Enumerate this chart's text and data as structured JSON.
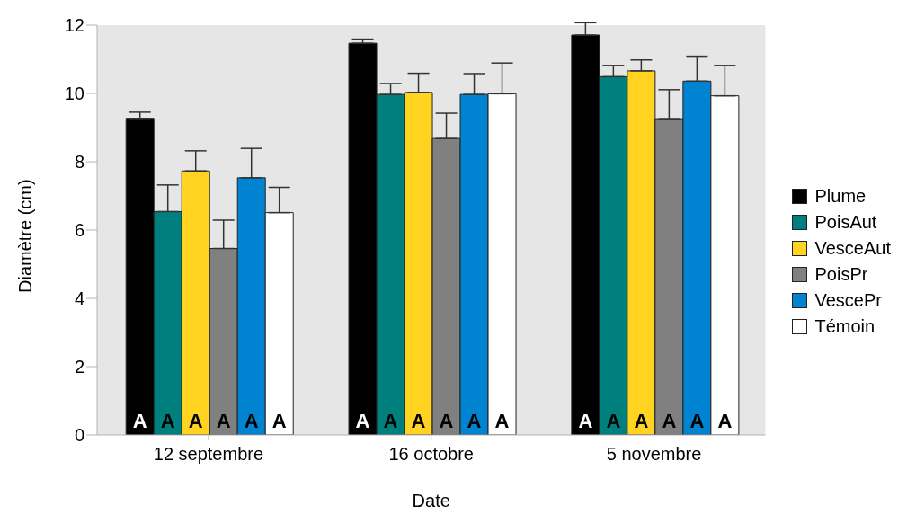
{
  "chart_data": {
    "type": "bar",
    "xlabel": "Date",
    "ylabel": "Diamètre (cm)",
    "categories": [
      "12 septembre",
      "16 octobre",
      "5 novembre"
    ],
    "series": [
      {
        "name": "Plume",
        "color": "#000000",
        "values": [
          9.27,
          11.47,
          11.71
        ],
        "errors": [
          [
            9.27,
            9.45
          ],
          [
            11.47,
            11.59
          ],
          [
            11.71,
            12.07
          ]
        ],
        "value_labels": [
          "A",
          "A",
          "A"
        ]
      },
      {
        "name": "PoisAut",
        "color": "#007f7f",
        "values": [
          6.54,
          9.97,
          10.49
        ],
        "errors": [
          [
            6.54,
            7.32
          ],
          [
            9.97,
            10.29
          ],
          [
            10.49,
            10.82
          ]
        ],
        "value_labels": [
          "A",
          "A",
          "A"
        ]
      },
      {
        "name": "VesceAut",
        "color": "#ffd320",
        "values": [
          7.73,
          10.03,
          10.66
        ],
        "errors": [
          [
            7.73,
            8.32
          ],
          [
            10.03,
            10.59
          ],
          [
            10.66,
            10.98
          ]
        ],
        "value_labels": [
          "A",
          "A",
          "A"
        ]
      },
      {
        "name": "PoisPr",
        "color": "#808080",
        "values": [
          5.46,
          8.68,
          9.26
        ],
        "errors": [
          [
            5.46,
            6.29
          ],
          [
            8.68,
            9.42
          ],
          [
            9.26,
            10.11
          ]
        ],
        "value_labels": [
          "A",
          "A",
          "A"
        ]
      },
      {
        "name": "VescePr",
        "color": "#0084d1",
        "values": [
          7.53,
          9.97,
          10.36
        ],
        "errors": [
          [
            7.53,
            8.39
          ],
          [
            9.97,
            10.58
          ],
          [
            10.36,
            11.09
          ]
        ],
        "value_labels": [
          "A",
          "A",
          "A"
        ]
      },
      {
        "name": "Témoin",
        "color": "#ffffff",
        "values": [
          6.51,
          9.99,
          9.93
        ],
        "errors": [
          [
            6.51,
            7.25
          ],
          [
            9.99,
            10.89
          ],
          [
            9.93,
            10.82
          ]
        ],
        "value_labels": [
          "A",
          "A",
          "A"
        ]
      }
    ],
    "ylim": [
      0,
      12
    ],
    "yticks": [
      0,
      2,
      4,
      6,
      8,
      10,
      12
    ],
    "grid": false,
    "legend": "right"
  }
}
